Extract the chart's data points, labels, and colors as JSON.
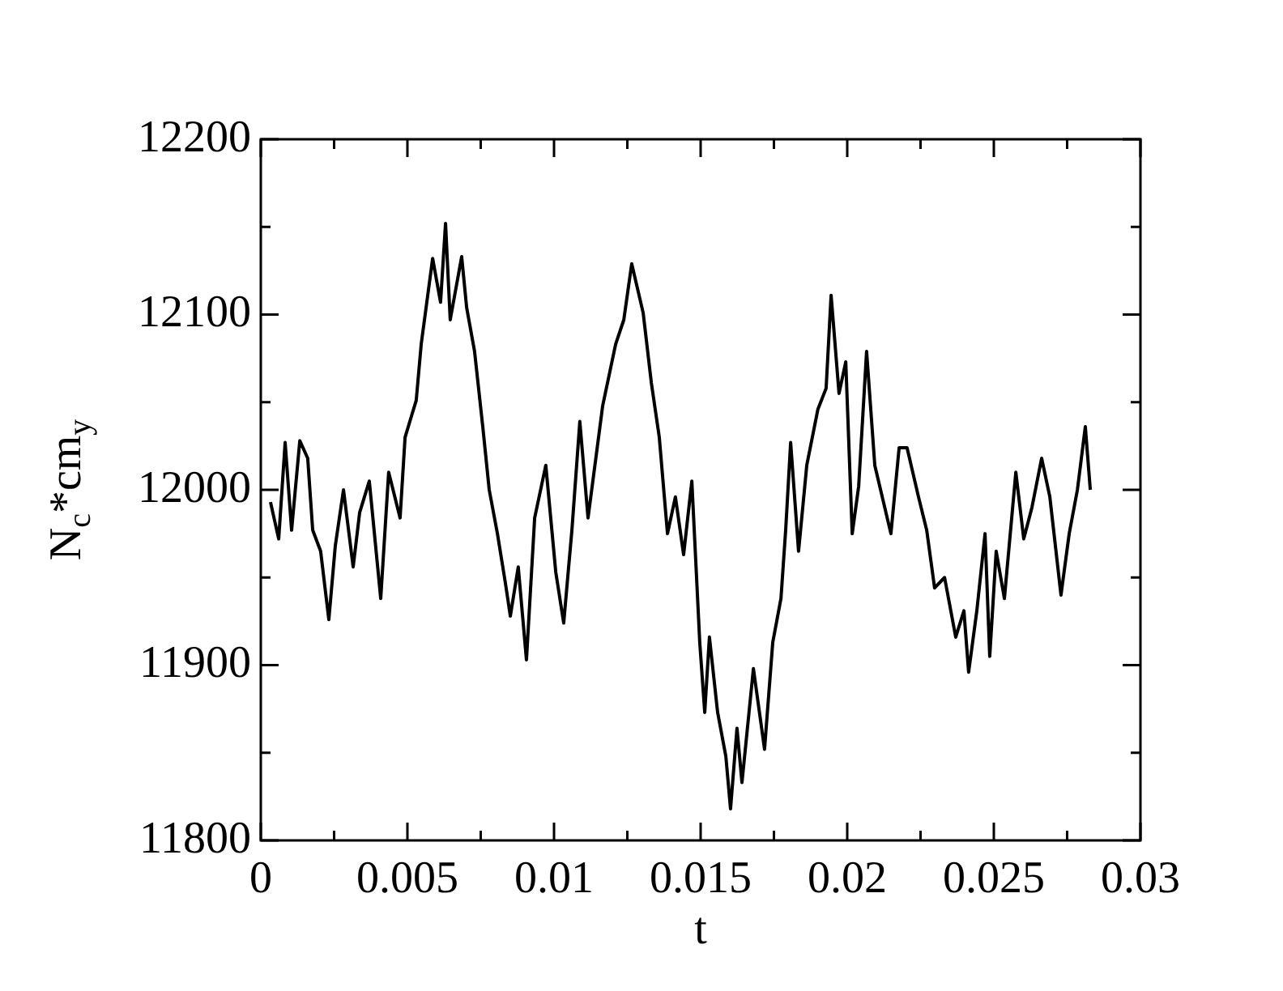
{
  "chart_data": {
    "type": "line",
    "xlabel": "t",
    "ylabel": "N$_{c}$*cm$_{y}$",
    "xlim": [
      0,
      0.03
    ],
    "ylim": [
      11800,
      12200
    ],
    "xticks": [
      0,
      {
        "value": 0.0025,
        "label": null
      },
      0.005,
      {
        "value": 0.0075,
        "label": null
      },
      0.01,
      {
        "value": 0.0125,
        "label": null
      },
      0.015,
      {
        "value": 0.0175,
        "label": null
      },
      0.02,
      {
        "value": 0.0225,
        "label": null
      },
      0.025,
      {
        "value": 0.0275,
        "label": null
      },
      0.03
    ],
    "yticks": [
      11800,
      {
        "value": 11850,
        "label": null
      },
      11900,
      {
        "value": 11950,
        "label": null
      },
      12000,
      {
        "value": 12050,
        "label": null
      },
      12100,
      {
        "value": 12150,
        "label": null
      },
      12200
    ],
    "grid": false,
    "legend": false,
    "marker": "none",
    "line_style": "solid",
    "x": [
      0.00033,
      0.00061,
      0.00083,
      0.00105,
      0.00133,
      0.0016,
      0.00177,
      0.00204,
      0.00232,
      0.00254,
      0.00282,
      0.00315,
      0.00337,
      0.0037,
      0.00409,
      0.00436,
      0.00475,
      0.00492,
      0.0053,
      0.00547,
      0.00586,
      0.00613,
      0.0063,
      0.00646,
      0.00685,
      0.00702,
      0.00729,
      0.00757,
      0.00779,
      0.00807,
      0.00834,
      0.00851,
      0.00878,
      0.00906,
      0.00934,
      0.00972,
      0.01006,
      0.01033,
      0.01061,
      0.01088,
      0.01116,
      0.01166,
      0.0121,
      0.01238,
      0.01265,
      0.01304,
      0.01332,
      0.01359,
      0.01387,
      0.01414,
      0.01442,
      0.0147,
      0.01497,
      0.01514,
      0.0153,
      0.01558,
      0.01586,
      0.01602,
      0.01624,
      0.01641,
      0.0168,
      0.01718,
      0.01746,
      0.01774,
      0.0179,
      0.01807,
      0.01834,
      0.01862,
      0.019,
      0.01928,
      0.01945,
      0.01972,
      0.01995,
      0.02017,
      0.02039,
      0.02066,
      0.02094,
      0.02149,
      0.02177,
      0.02204,
      0.02243,
      0.02271,
      0.02298,
      0.02332,
      0.0237,
      0.02398,
      0.02414,
      0.02442,
      0.0247,
      0.02486,
      0.02508,
      0.02536,
      0.02575,
      0.02602,
      0.0263,
      0.02663,
      0.02691,
      0.02729,
      0.02757,
      0.02785,
      0.02812,
      0.02829
    ],
    "series": [
      {
        "color": "#000000",
        "values": [
          11993,
          11972,
          12027,
          11977,
          12028,
          12018,
          11977,
          11965,
          11926,
          11968,
          12000,
          11956,
          11987,
          12005,
          11938,
          12010,
          11984,
          12030,
          12051,
          12083,
          12132,
          12107,
          12152,
          12097,
          12133,
          12104,
          12079,
          12036,
          12000,
          11975,
          11947,
          11928,
          11956,
          11903,
          11984,
          12014,
          11953,
          11924,
          11977,
          12039,
          11984,
          12048,
          12083,
          12097,
          12129,
          12101,
          12061,
          12030,
          11975,
          11996,
          11963,
          12005,
          11913,
          11873,
          11916,
          11873,
          11848,
          11818,
          11864,
          11833,
          11898,
          11852,
          11913,
          11938,
          11977,
          12027,
          11965,
          12014,
          12046,
          12058,
          12111,
          12055,
          12073,
          11975,
          12002,
          12079,
          12014,
          11975,
          12024,
          12024,
          11996,
          11977,
          11944,
          11950,
          11916,
          11931,
          11896,
          11931,
          11975,
          11905,
          11965,
          11938,
          12010,
          11972,
          11990,
          12018,
          11996,
          11940,
          11975,
          12000,
          12036,
          12000
        ]
      }
    ]
  }
}
